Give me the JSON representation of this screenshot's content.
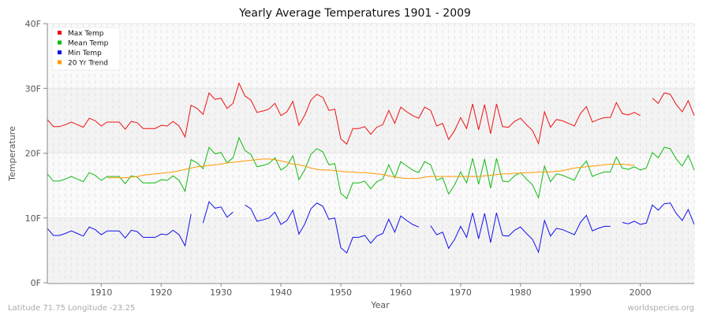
{
  "chart_data": {
    "type": "line",
    "title": "Yearly Average Temperatures 1901 - 2009",
    "xlabel": "Year",
    "ylabel": "Temperature",
    "xlim": [
      1901,
      2009
    ],
    "ylim": [
      0,
      40
    ],
    "yticks": [
      "0F",
      "10F",
      "20F",
      "30F",
      "40F"
    ],
    "xticks": [
      "1910",
      "1920",
      "1930",
      "1940",
      "1950",
      "1960",
      "1970",
      "1980",
      "1990",
      "2000"
    ],
    "grid": true,
    "legend_position": "top-left",
    "footer_left": "Latitude 71.75 Longitude -23.25",
    "footer_right": "worldspecies.org",
    "x_start": 1901,
    "series": [
      {
        "name": "Max Temp",
        "color": "#ee1111",
        "values": [
          25.2,
          24.1,
          24.1,
          24.4,
          24.8,
          24.4,
          24.0,
          25.4,
          25.0,
          24.2,
          24.8,
          24.8,
          24.8,
          23.7,
          24.9,
          24.7,
          23.8,
          23.8,
          23.8,
          24.3,
          24.2,
          24.9,
          24.2,
          22.5,
          27.4,
          26.9,
          26.0,
          29.3,
          28.3,
          28.5,
          26.9,
          27.7,
          30.8,
          28.8,
          28.2,
          26.3,
          26.5,
          26.8,
          27.7,
          25.8,
          26.4,
          28.0,
          24.3,
          25.9,
          28.2,
          29.1,
          28.6,
          26.6,
          26.8,
          22.2,
          21.4,
          23.8,
          23.8,
          24.1,
          22.9,
          24.0,
          24.4,
          26.6,
          24.6,
          27.1,
          26.4,
          25.8,
          25.4,
          27.1,
          26.6,
          24.2,
          24.6,
          22.1,
          23.5,
          25.5,
          23.8,
          27.6,
          23.6,
          27.5,
          23.0,
          27.6,
          24.1,
          24.0,
          24.9,
          25.4,
          24.4,
          23.5,
          21.5,
          26.4,
          24.0,
          25.2,
          25.0,
          24.6,
          24.2,
          26.1,
          27.2,
          24.8,
          25.2,
          25.5,
          25.5,
          27.8,
          26.1,
          25.9,
          26.3,
          25.8,
          null,
          28.5,
          27.7,
          29.3,
          29.1,
          27.5,
          26.4,
          28.1,
          25.8
        ]
      },
      {
        "name": "Mean Temp",
        "color": "#11bb11",
        "values": [
          16.8,
          15.7,
          15.7,
          16.0,
          16.4,
          16.0,
          15.6,
          17.0,
          16.6,
          15.8,
          16.4,
          16.4,
          16.4,
          15.3,
          16.5,
          16.3,
          15.4,
          15.4,
          15.4,
          15.9,
          15.8,
          16.5,
          15.8,
          14.1,
          19.0,
          18.5,
          17.6,
          20.9,
          19.9,
          20.1,
          18.5,
          19.3,
          22.4,
          20.4,
          19.8,
          17.9,
          18.1,
          18.4,
          19.3,
          17.4,
          18.0,
          19.6,
          15.9,
          17.5,
          19.8,
          20.7,
          20.2,
          18.2,
          18.4,
          13.8,
          13.0,
          15.4,
          15.4,
          15.7,
          14.5,
          15.6,
          16.0,
          18.2,
          16.2,
          18.7,
          18.0,
          17.4,
          17.0,
          18.7,
          18.2,
          15.8,
          16.2,
          13.7,
          15.1,
          17.1,
          15.4,
          19.2,
          15.2,
          19.1,
          14.6,
          19.2,
          15.7,
          15.6,
          16.5,
          17.0,
          16.0,
          15.1,
          13.1,
          18.0,
          15.6,
          16.8,
          16.6,
          16.2,
          15.8,
          17.7,
          18.8,
          16.4,
          16.8,
          17.1,
          17.1,
          19.4,
          17.7,
          17.5,
          17.9,
          17.4,
          17.7,
          20.1,
          19.3,
          20.9,
          20.7,
          19.1,
          18.0,
          19.7,
          17.4
        ]
      },
      {
        "name": "Min Temp",
        "color": "#1111ee",
        "values": [
          8.4,
          7.3,
          7.3,
          7.6,
          8.0,
          7.6,
          7.2,
          8.6,
          8.2,
          7.4,
          8.0,
          8.0,
          8.0,
          6.9,
          8.1,
          7.9,
          7.0,
          7.0,
          7.0,
          7.5,
          7.4,
          8.1,
          7.4,
          5.7,
          10.6,
          null,
          9.2,
          12.5,
          11.5,
          11.7,
          10.1,
          10.9,
          null,
          12.0,
          11.4,
          9.5,
          9.7,
          10.0,
          10.9,
          9.0,
          9.6,
          11.2,
          7.5,
          9.1,
          11.4,
          12.3,
          11.8,
          9.8,
          10.0,
          5.4,
          4.6,
          7.0,
          7.0,
          7.3,
          6.1,
          7.2,
          7.6,
          9.8,
          7.8,
          10.3,
          9.6,
          9.0,
          8.6,
          null,
          8.8,
          7.4,
          7.8,
          5.3,
          6.7,
          8.7,
          7.0,
          10.8,
          6.8,
          10.7,
          6.2,
          10.8,
          7.3,
          7.2,
          8.1,
          8.6,
          7.6,
          6.7,
          4.7,
          9.6,
          7.2,
          8.4,
          8.2,
          7.8,
          7.4,
          9.3,
          10.4,
          8.0,
          8.4,
          8.7,
          8.7,
          null,
          9.3,
          9.1,
          9.5,
          9.0,
          9.2,
          12.0,
          11.2,
          12.2,
          12.3,
          10.7,
          9.6,
          11.3,
          9.0
        ]
      },
      {
        "name": "20 Yr Trend",
        "color": "#ff9900",
        "values": [
          null,
          null,
          null,
          null,
          null,
          null,
          null,
          null,
          null,
          null,
          16.2,
          16.2,
          16.2,
          16.2,
          16.3,
          16.4,
          16.6,
          16.7,
          16.8,
          16.9,
          17.0,
          17.1,
          17.3,
          17.5,
          17.7,
          17.9,
          18.0,
          18.1,
          18.2,
          18.3,
          18.5,
          18.6,
          18.7,
          18.8,
          18.9,
          19.0,
          19.1,
          19.1,
          19.0,
          18.8,
          18.6,
          18.3,
          18.2,
          18.0,
          17.7,
          17.5,
          17.4,
          17.4,
          17.3,
          17.2,
          17.1,
          17.1,
          17.0,
          17.0,
          16.9,
          16.8,
          16.7,
          16.5,
          16.3,
          16.2,
          16.1,
          16.1,
          16.1,
          16.3,
          16.4,
          16.4,
          16.4,
          16.4,
          16.4,
          16.4,
          16.4,
          16.4,
          16.4,
          16.5,
          16.6,
          16.7,
          16.8,
          16.8,
          16.9,
          16.9,
          17.0,
          17.0,
          17.1,
          17.1,
          17.1,
          17.2,
          17.3,
          17.5,
          17.7,
          17.8,
          17.9,
          18.0,
          18.1,
          18.2,
          18.3,
          18.3,
          18.3,
          18.2,
          18.1,
          null,
          null,
          null,
          null,
          null,
          null,
          null,
          null,
          null,
          null
        ]
      }
    ]
  }
}
